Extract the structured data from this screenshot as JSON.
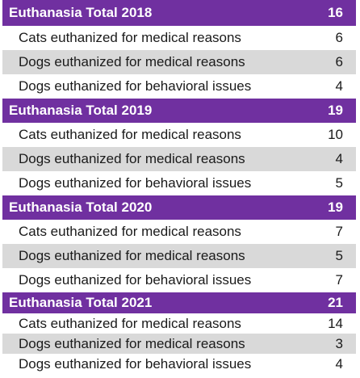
{
  "sections": [
    {
      "title": "Euthanasia Total 2018",
      "total": "16",
      "rows": [
        {
          "label": "Cats euthanized for medical reasons",
          "value": "6"
        },
        {
          "label": "Dogs euthanized for medical reasons",
          "value": "6"
        },
        {
          "label": "Dogs euthanized for behavioral issues",
          "value": "4"
        }
      ]
    },
    {
      "title": "Euthanasia Total 2019",
      "total": "19",
      "rows": [
        {
          "label": "Cats euthanized for medical reasons",
          "value": "10"
        },
        {
          "label": "Dogs euthanized for medical reasons",
          "value": "4"
        },
        {
          "label": "Dogs euthanized for behavioral issues",
          "value": "5"
        }
      ]
    },
    {
      "title": "Euthanasia Total 2020",
      "total": "19",
      "rows": [
        {
          "label": "Cats euthanized for medical reasons",
          "value": "7"
        },
        {
          "label": "Dogs euthanized for medical reasons",
          "value": "5"
        },
        {
          "label": "Dogs euthanized for behavioral issues",
          "value": "7"
        }
      ]
    },
    {
      "title": "Euthanasia Total 2021",
      "total": "21",
      "rows": [
        {
          "label": "Cats euthanized for medical reasons",
          "value": "14"
        },
        {
          "label": "Dogs euthanized for medical reasons",
          "value": "3"
        },
        {
          "label": "Dogs euthanized for behavioral issues",
          "value": "4"
        }
      ]
    }
  ],
  "colors": {
    "header_bg": "#7030a0",
    "header_text": "#ffffff",
    "shade_bg": "#d9d9d9"
  }
}
